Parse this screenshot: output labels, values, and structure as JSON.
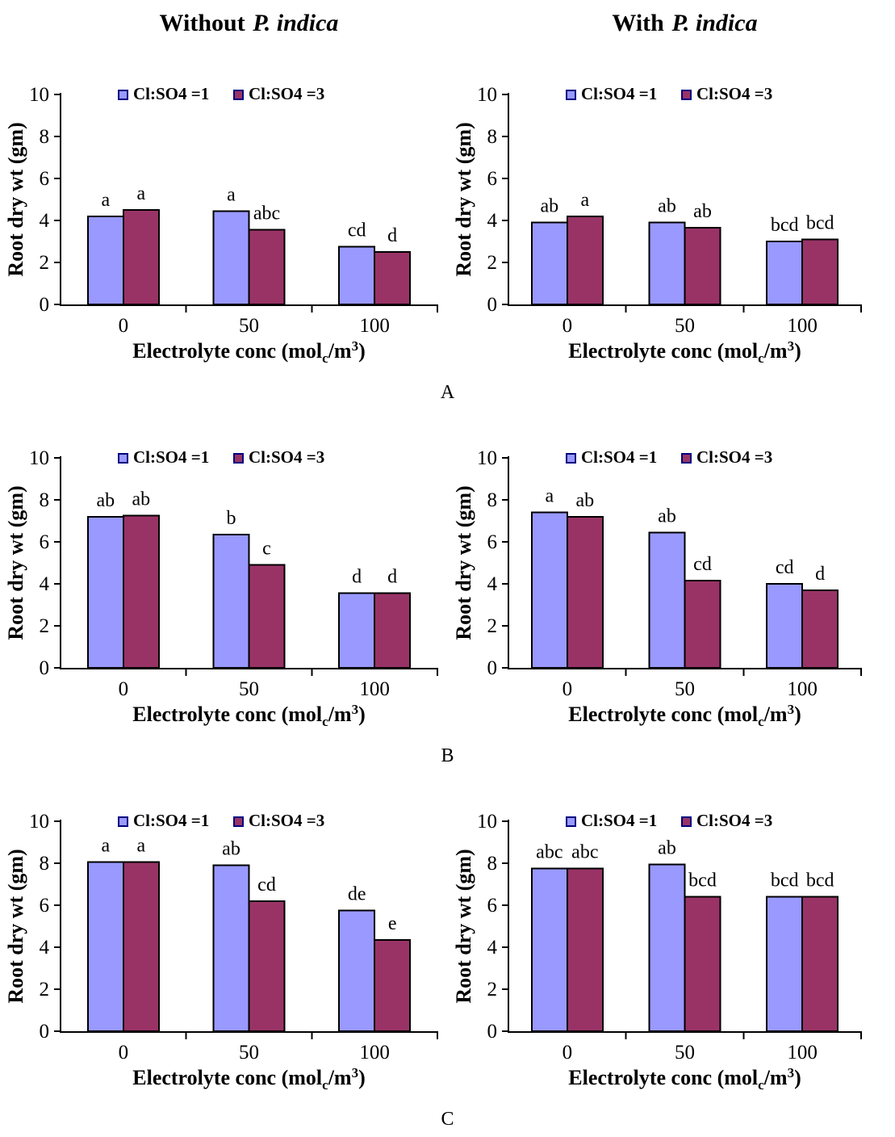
{
  "column_titles": [
    {
      "prefix": "Without",
      "species": "P. indica"
    },
    {
      "prefix": "With",
      "species": "P. indica"
    }
  ],
  "panel_labels": [
    "A",
    "B",
    "C"
  ],
  "colors": {
    "series1_fill": "#9999FF",
    "series2_fill": "#993366",
    "bar_border": "#000000",
    "legend_swatch_border": "#000080",
    "axis": "#000000",
    "text": "#000000",
    "background": "#ffffff"
  },
  "legend": {
    "items": [
      {
        "label": "Cl:SO4 =1",
        "color": "#9999FF"
      },
      {
        "label": "Cl:SO4 =3",
        "color": "#993366"
      }
    ]
  },
  "axes": {
    "ylabel": "Root dry wt (gm)",
    "xlabel_parts": {
      "pre": "Electrolyte conc (mol",
      "sub": "c",
      "mid": "/m",
      "sup": "3",
      "post": ")"
    },
    "yticks": [
      0,
      2,
      4,
      6,
      8,
      10
    ],
    "ylim": [
      0,
      10
    ],
    "categories": [
      "0",
      "50",
      "100"
    ]
  },
  "chart_data": [
    {
      "id": "a-without",
      "panel": "A",
      "column": "Without P. indica",
      "type": "bar",
      "categories": [
        "0",
        "50",
        "100"
      ],
      "ylim": [
        0,
        10
      ],
      "ylabel": "Root dry wt (gm)",
      "xlabel": "Electrolyte conc (molc/m3)",
      "series": [
        {
          "name": "Cl:SO4 =1",
          "values": [
            4.2,
            4.45,
            2.75
          ],
          "sig_labels": [
            "a",
            "a",
            "cd"
          ]
        },
        {
          "name": "Cl:SO4 =3",
          "values": [
            4.5,
            3.55,
            2.5
          ],
          "sig_labels": [
            "a",
            "abc",
            "d"
          ]
        }
      ]
    },
    {
      "id": "a-with",
      "panel": "A",
      "column": "With P. indica",
      "type": "bar",
      "categories": [
        "0",
        "50",
        "100"
      ],
      "ylim": [
        0,
        10
      ],
      "ylabel": "Root dry wt (gm)",
      "xlabel": "Electrolyte conc (molc/m3)",
      "series": [
        {
          "name": "Cl:SO4 =1",
          "values": [
            3.9,
            3.9,
            3.0
          ],
          "sig_labels": [
            "ab",
            "ab",
            "bcd"
          ]
        },
        {
          "name": "Cl:SO4 =3",
          "values": [
            4.2,
            3.65,
            3.1
          ],
          "sig_labels": [
            "a",
            "ab",
            "bcd"
          ]
        }
      ]
    },
    {
      "id": "b-without",
      "panel": "B",
      "column": "Without P. indica",
      "type": "bar",
      "categories": [
        "0",
        "50",
        "100"
      ],
      "ylim": [
        0,
        10
      ],
      "ylabel": "Root dry wt (gm)",
      "xlabel": "Electrolyte conc (molc/m3)",
      "series": [
        {
          "name": "Cl:SO4 =1",
          "values": [
            7.2,
            6.35,
            3.55
          ],
          "sig_labels": [
            "ab",
            "b",
            "d"
          ]
        },
        {
          "name": "Cl:SO4 =3",
          "values": [
            7.25,
            4.9,
            3.55
          ],
          "sig_labels": [
            "ab",
            "c",
            "d"
          ]
        }
      ]
    },
    {
      "id": "b-with",
      "panel": "B",
      "column": "With P. indica",
      "type": "bar",
      "categories": [
        "0",
        "50",
        "100"
      ],
      "ylim": [
        0,
        10
      ],
      "ylabel": "Root dry wt (gm)",
      "xlabel": "Electrolyte conc (molc/m3)",
      "series": [
        {
          "name": "Cl:SO4 =1",
          "values": [
            7.4,
            6.45,
            4.0
          ],
          "sig_labels": [
            "a",
            "ab",
            "cd"
          ]
        },
        {
          "name": "Cl:SO4 =3",
          "values": [
            7.2,
            4.15,
            3.7
          ],
          "sig_labels": [
            "ab",
            "cd",
            "d"
          ]
        }
      ]
    },
    {
      "id": "c-without",
      "panel": "C",
      "column": "Without P. indica",
      "type": "bar",
      "categories": [
        "0",
        "50",
        "100"
      ],
      "ylim": [
        0,
        10
      ],
      "ylabel": "Root dry wt (gm)",
      "xlabel": "Electrolyte conc (molc/m3)",
      "series": [
        {
          "name": "Cl:SO4 =1",
          "values": [
            8.05,
            7.9,
            5.75
          ],
          "sig_labels": [
            "a",
            "ab",
            "de"
          ]
        },
        {
          "name": "Cl:SO4 =3",
          "values": [
            8.05,
            6.2,
            4.35
          ],
          "sig_labels": [
            "a",
            "cd",
            "e"
          ]
        }
      ]
    },
    {
      "id": "c-with",
      "panel": "C",
      "column": "With P. indica",
      "type": "bar",
      "categories": [
        "0",
        "50",
        "100"
      ],
      "ylim": [
        0,
        10
      ],
      "ylabel": "Root dry wt (gm)",
      "xlabel": "Electrolyte conc (molc/m3)",
      "series": [
        {
          "name": "Cl:SO4 =1",
          "values": [
            7.75,
            7.95,
            6.4
          ],
          "sig_labels": [
            "abc",
            "ab",
            "bcd"
          ]
        },
        {
          "name": "Cl:SO4 =3",
          "values": [
            7.75,
            6.4,
            6.4
          ],
          "sig_labels": [
            "abc",
            "bcd",
            "bcd"
          ]
        }
      ]
    }
  ]
}
